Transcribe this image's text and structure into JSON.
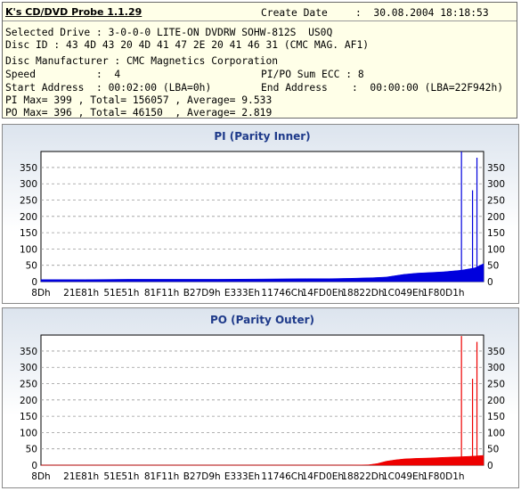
{
  "header": {
    "app_title": "K's CD/DVD Probe 1.1.29",
    "create_date_label": "Create Date",
    "create_date_value": ":  30.08.2004 18:18:53"
  },
  "info": {
    "selected_drive": "Selected Drive : 3-0-0-0 LITE-ON DVDRW SOHW-812S  US0Q",
    "disc_id": "Disc ID : 43 4D 43 20 4D 41 47 2E 20 41 46 31 (CMC MAG. AF1)",
    "disc_manufacturer": "Disc Manufacturer : CMC Magnetics Corporation",
    "speed": "Speed          :  4",
    "pipo_sum_ecc": "PI/PO Sum ECC : 8",
    "start_address": "Start Address  : 00:02:00 (LBA=0h)",
    "end_address": "End Address    :  00:00:00 (LBA=22F942h)",
    "pi_stats": "PI Max= 399 , Total= 156057 , Average= 9.533",
    "po_stats": "PO Max= 396 , Total= 46150  , Average= 2.819"
  },
  "chart_data": [
    {
      "type": "area",
      "title": "PI (Parity Inner)",
      "color": "#0000dd",
      "x_ticks": [
        "8Dh",
        "21E81h",
        "51E51h",
        "81F11h",
        "B27D9h",
        "E333Eh",
        "11746Ch",
        "14FD0Eh",
        "18822Dh",
        "1C049Eh",
        "1F80D1h"
      ],
      "y_ticks": [
        0,
        50,
        100,
        150,
        200,
        250,
        300,
        350
      ],
      "ylim": [
        0,
        399
      ],
      "grid": true,
      "x_fraction": [
        0,
        0.1,
        0.2,
        0.3,
        0.4,
        0.5,
        0.6,
        0.65,
        0.7,
        0.75,
        0.78,
        0.8,
        0.82,
        0.85,
        0.88,
        0.91,
        0.95,
        0.98,
        1.0
      ],
      "values": [
        6,
        6,
        7,
        7,
        7,
        8,
        9,
        9,
        10,
        12,
        14,
        18,
        22,
        26,
        28,
        30,
        35,
        42,
        55
      ],
      "spikes": [
        {
          "x_fraction": 0.95,
          "value": 399
        },
        {
          "x_fraction": 0.975,
          "value": 280
        },
        {
          "x_fraction": 0.985,
          "value": 380
        }
      ]
    },
    {
      "type": "area",
      "title": "PO (Parity Outer)",
      "color": "#ee0000",
      "x_ticks": [
        "8Dh",
        "21E81h",
        "51E51h",
        "81F11h",
        "B27D9h",
        "E333Eh",
        "11746Ch",
        "14FD0Eh",
        "18822Dh",
        "1C049Eh",
        "1F80D1h"
      ],
      "y_ticks": [
        0,
        50,
        100,
        150,
        200,
        250,
        300,
        350
      ],
      "ylim": [
        0,
        399
      ],
      "grid": true,
      "x_fraction": [
        0,
        0.1,
        0.2,
        0.3,
        0.4,
        0.5,
        0.6,
        0.7,
        0.74,
        0.76,
        0.78,
        0.8,
        0.82,
        0.85,
        0.88,
        0.91,
        0.95,
        0.98,
        1.0
      ],
      "values": [
        0,
        0,
        0,
        0,
        0,
        0,
        0,
        0,
        1,
        5,
        12,
        16,
        19,
        21,
        22,
        24,
        26,
        28,
        30
      ],
      "spikes": [
        {
          "x_fraction": 0.95,
          "value": 396
        },
        {
          "x_fraction": 0.975,
          "value": 265
        },
        {
          "x_fraction": 0.985,
          "value": 378
        }
      ]
    }
  ]
}
